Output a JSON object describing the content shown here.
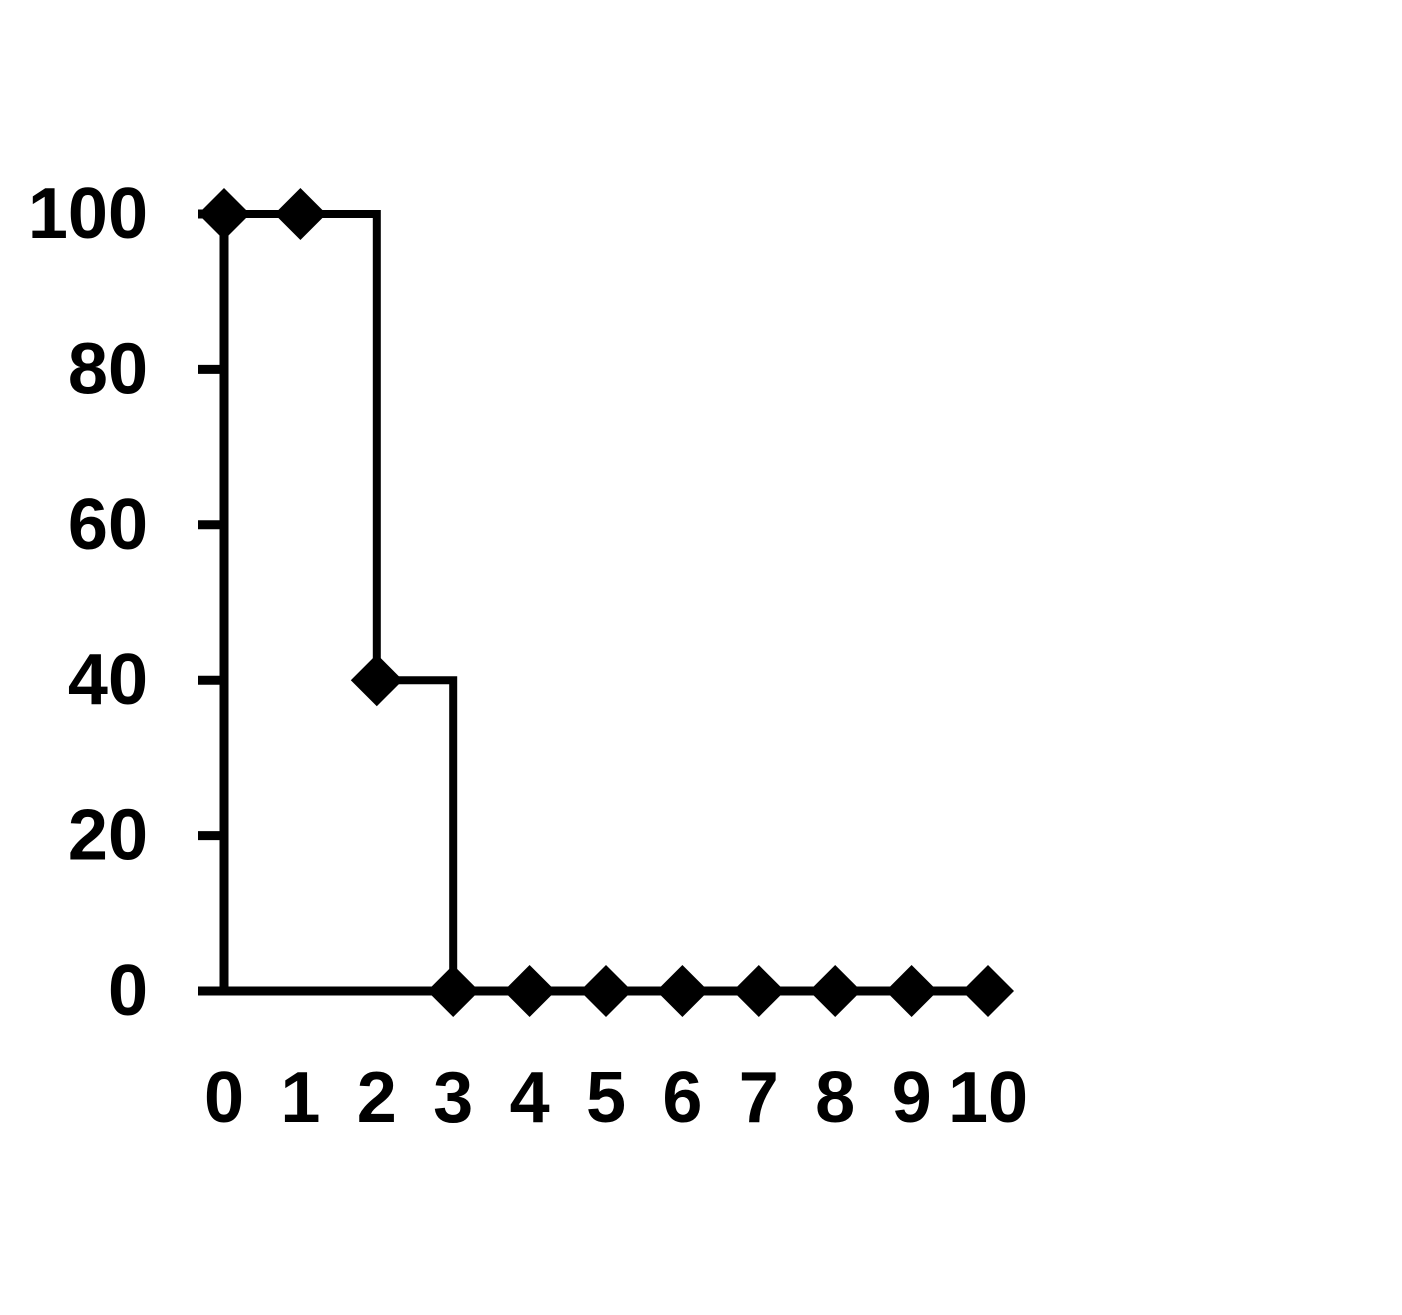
{
  "chart_data": {
    "type": "line",
    "title": "",
    "xlabel": "",
    "ylabel": "",
    "x": [
      0,
      1,
      2,
      3,
      4,
      5,
      6,
      7,
      8,
      9,
      10
    ],
    "series": [
      {
        "values": [
          100,
          100,
          40,
          0,
          0,
          0,
          0,
          0,
          0,
          0,
          0
        ]
      }
    ],
    "step": "post",
    "marker": "diamond",
    "xlim": [
      0,
      10
    ],
    "ylim": [
      0,
      100
    ],
    "x_ticks": [
      "0",
      "1",
      "2",
      "3",
      "4",
      "5",
      "6",
      "7",
      "8",
      "9",
      "10"
    ],
    "y_ticks": [
      "0",
      "20",
      "40",
      "60",
      "80",
      "100"
    ],
    "grid": false,
    "legend": "none",
    "colors": {
      "line": "#000000",
      "marker": "#000000",
      "axis": "#000000"
    }
  }
}
